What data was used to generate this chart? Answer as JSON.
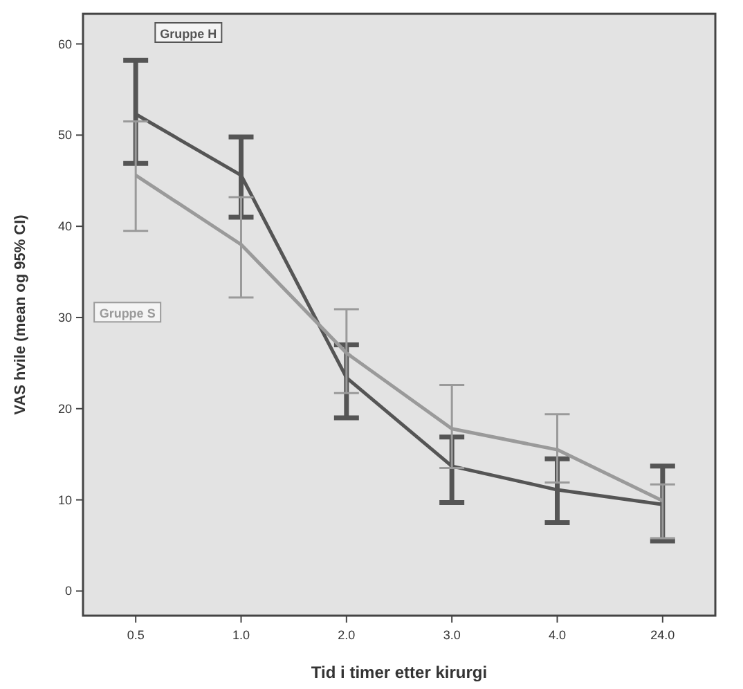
{
  "chart_data": {
    "type": "line",
    "xlabel": "Tid i timer etter kirurgi",
    "ylabel": "VAS hvile (mean og 95% CI)",
    "categories": [
      "0.5",
      "1.0",
      "2.0",
      "3.0",
      "4.0",
      "24.0"
    ],
    "series": [
      {
        "name": "Gruppe H",
        "color": "#555555",
        "values": [
          52.3,
          45.6,
          23.4,
          13.7,
          11.1,
          9.5
        ],
        "errors": [
          [
            46.9,
            58.2
          ],
          [
            41.0,
            49.8
          ],
          [
            19.0,
            27.0
          ],
          [
            9.7,
            16.9
          ],
          [
            7.5,
            14.5
          ],
          [
            5.5,
            13.7
          ]
        ]
      },
      {
        "name": "Gruppe S",
        "color": "#9a9a9a",
        "values": [
          45.6,
          38.0,
          26.1,
          17.8,
          15.5,
          9.9
        ],
        "errors": [
          [
            39.5,
            51.5
          ],
          [
            32.2,
            43.2
          ],
          [
            21.7,
            30.9
          ],
          [
            13.5,
            22.6
          ],
          [
            11.9,
            19.4
          ],
          [
            5.8,
            11.7
          ]
        ]
      }
    ],
    "ylim": [
      -2.7,
      63.3
    ],
    "yticks": [
      0,
      10,
      20,
      30,
      40,
      50,
      60
    ],
    "grid": false,
    "marker": "none",
    "line_style": "solid"
  }
}
